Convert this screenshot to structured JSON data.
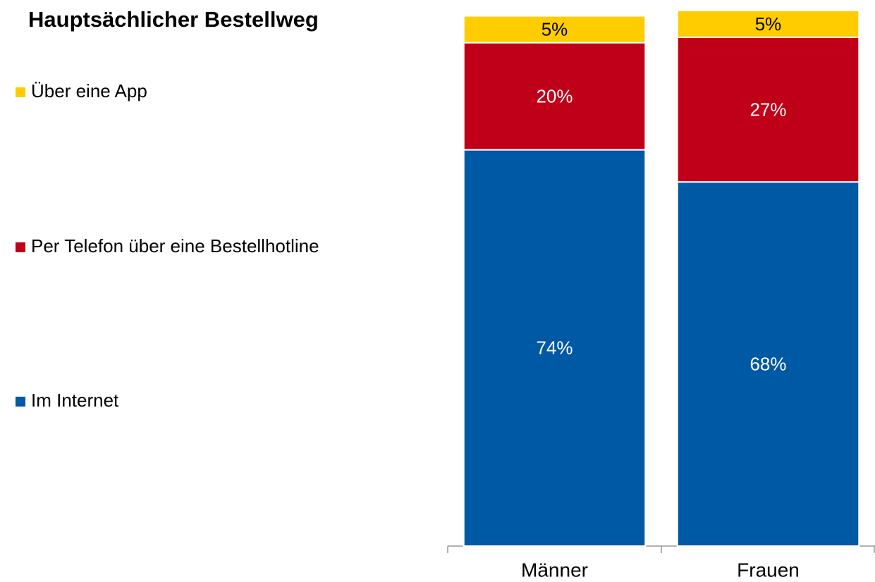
{
  "chart_data": {
    "type": "stacked_bar",
    "title": "Hauptsächlicher Bestellweg",
    "categories": [
      "Männer",
      "Frauen"
    ],
    "series": [
      {
        "name": "Im Internet",
        "color": "#0059a4",
        "values": [
          74,
          68
        ],
        "value_labels": [
          "74%",
          "68%"
        ]
      },
      {
        "name": "Per Telefon über eine Bestellhotline",
        "color": "#c00018",
        "values": [
          20,
          27
        ],
        "value_labels": [
          "20%",
          "27%"
        ]
      },
      {
        "name": "Über eine App",
        "color": "#ffcc00",
        "values": [
          5,
          5
        ],
        "value_labels": [
          "5%",
          "5%"
        ]
      }
    ],
    "ylim": [
      0,
      100
    ]
  }
}
